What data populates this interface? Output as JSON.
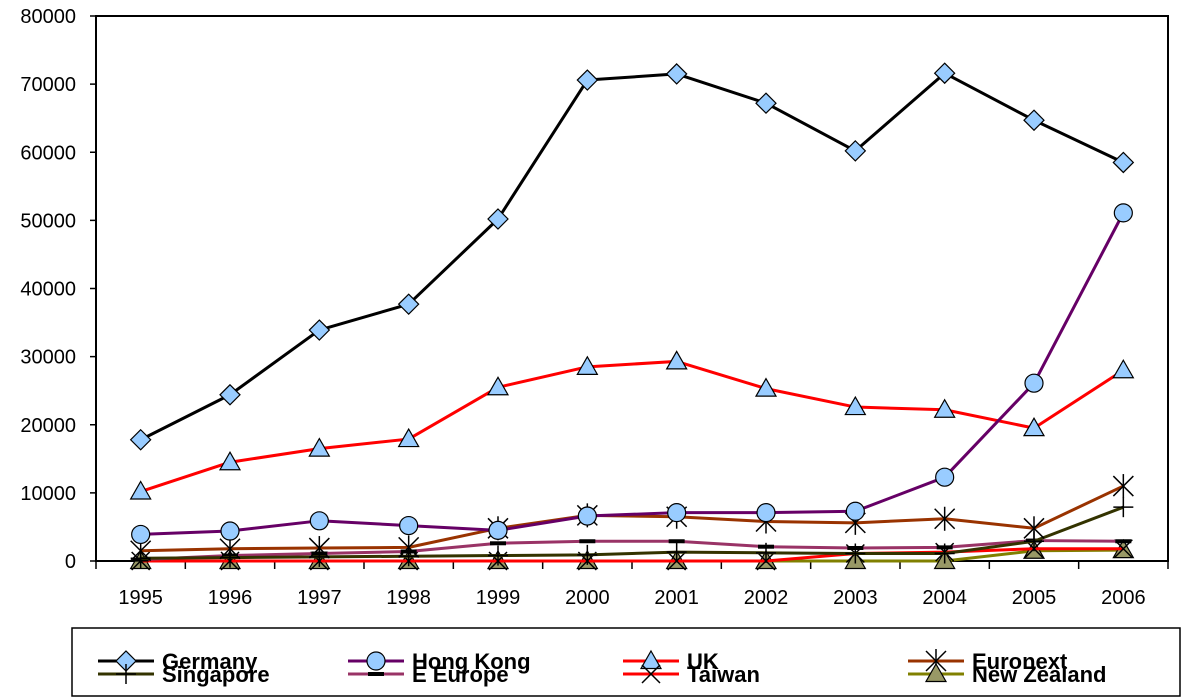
{
  "chart_data": {
    "type": "line",
    "title": "",
    "xlabel": "",
    "ylabel": "",
    "categories": [
      "1995",
      "1996",
      "1997",
      "1998",
      "1999",
      "2000",
      "2001",
      "2002",
      "2003",
      "2004",
      "2005",
      "2006"
    ],
    "ylim": [
      0,
      80000
    ],
    "yticks": [
      0,
      10000,
      20000,
      30000,
      40000,
      50000,
      60000,
      70000,
      80000
    ],
    "grid": false,
    "legend_position": "bottom",
    "series": [
      {
        "name": "Germany",
        "color": "#000000",
        "marker": "diamond",
        "marker_fill": "#99ccff",
        "values": [
          17800,
          24400,
          33900,
          37700,
          50200,
          70600,
          71500,
          67200,
          60200,
          71600,
          64700,
          58500
        ]
      },
      {
        "name": "Hong Kong",
        "color": "#660066",
        "marker": "circle",
        "marker_fill": "#99ccff",
        "values": [
          3900,
          4400,
          5900,
          5200,
          4500,
          6600,
          7100,
          7100,
          7300,
          12300,
          26100,
          51100
        ]
      },
      {
        "name": "UK",
        "color": "#ff0000",
        "marker": "triangle",
        "marker_fill": "#99ccff",
        "values": [
          10200,
          14500,
          16500,
          17900,
          25500,
          28500,
          29300,
          25300,
          22600,
          22200,
          19500,
          28000
        ]
      },
      {
        "name": "Euronext",
        "color": "#993300",
        "marker": "asterisk",
        "marker_fill": "none",
        "values": [
          1500,
          1800,
          1900,
          2000,
          4800,
          6700,
          6500,
          5800,
          5600,
          6200,
          4800,
          11000
        ]
      },
      {
        "name": "Singapore",
        "color": "#333300",
        "marker": "plus",
        "marker_fill": "none",
        "values": [
          400,
          500,
          600,
          700,
          800,
          900,
          1300,
          1200,
          1100,
          1100,
          2900,
          7900
        ]
      },
      {
        "name": "E Europe",
        "color": "#993366",
        "marker": "dash",
        "marker_fill": "none",
        "values": [
          200,
          800,
          1100,
          1400,
          2600,
          2900,
          2900,
          2100,
          1900,
          2000,
          3000,
          2900
        ]
      },
      {
        "name": "Taiwan",
        "color": "#ff0000",
        "marker": "x",
        "marker_fill": "none",
        "values": [
          0,
          0,
          0,
          0,
          0,
          0,
          0,
          0,
          1100,
          1300,
          1800,
          1800
        ]
      },
      {
        "name": "New Zealand",
        "color": "#808000",
        "marker": "triangle",
        "marker_fill": "#999966",
        "values": [
          0,
          0,
          0,
          0,
          0,
          0,
          0,
          0,
          0,
          0,
          1500,
          1600
        ]
      }
    ]
  }
}
